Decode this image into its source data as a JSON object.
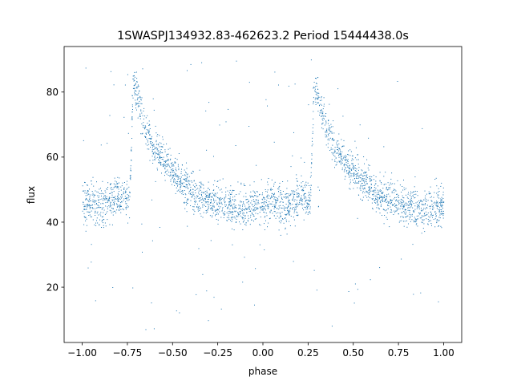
{
  "chart_data": {
    "type": "scatter",
    "title": "1SWASPJ134932.83-462623.2 Period 15444438.0s",
    "xlabel": "phase",
    "ylabel": "flux",
    "xlim": [
      -1.1,
      1.1
    ],
    "ylim": [
      3,
      94
    ],
    "x_ticks": [
      -1.0,
      -0.75,
      -0.5,
      -0.25,
      0.0,
      0.25,
      0.5,
      0.75,
      1.0
    ],
    "x_tick_labels": [
      "−1.00",
      "−0.75",
      "−0.50",
      "−0.25",
      "0.00",
      "0.25",
      "0.50",
      "0.75",
      "1.00"
    ],
    "y_ticks": [
      20,
      40,
      60,
      80
    ],
    "y_tick_labels": [
      "20",
      "40",
      "60",
      "80"
    ],
    "grid": false,
    "legend": "none",
    "marker_color": "#1f77b4",
    "series": [
      {
        "phase": [
          -1.0,
          -0.95,
          -0.9,
          -0.85,
          -0.8,
          -0.77,
          -0.74,
          -0.72,
          -0.7,
          -0.67,
          -0.64,
          -0.6,
          -0.56,
          -0.52,
          -0.48,
          -0.44,
          -0.4,
          -0.35,
          -0.3,
          -0.25,
          -0.2,
          -0.15,
          -0.1,
          -0.05,
          0.0,
          0.05,
          0.1,
          0.15,
          0.2,
          0.23,
          0.26,
          0.28,
          0.3,
          0.33,
          0.36,
          0.4,
          0.44,
          0.48,
          0.52,
          0.56,
          0.6,
          0.65,
          0.7,
          0.75,
          0.8,
          0.85,
          0.9,
          0.95,
          1.0
        ],
        "flux": [
          45,
          47,
          45,
          46,
          48,
          47,
          46,
          82,
          80,
          72,
          68,
          63,
          60,
          57,
          55,
          52,
          50,
          48,
          47,
          46,
          45,
          44,
          44,
          45,
          45,
          47,
          45,
          46,
          48,
          47,
          46,
          82,
          80,
          72,
          68,
          63,
          60,
          57,
          55,
          52,
          50,
          48,
          47,
          46,
          45,
          44,
          44,
          45,
          45
        ],
        "spread": [
          6,
          6,
          6,
          6,
          5,
          5,
          5,
          5,
          5,
          5,
          5,
          5,
          5,
          5,
          5,
          5,
          5,
          5,
          5,
          5,
          5,
          5,
          5,
          5,
          6,
          6,
          6,
          6,
          5,
          5,
          5,
          5,
          5,
          5,
          5,
          5,
          5,
          5,
          5,
          5,
          5,
          5,
          5,
          5,
          5,
          5,
          5,
          5,
          6
        ]
      }
    ]
  }
}
